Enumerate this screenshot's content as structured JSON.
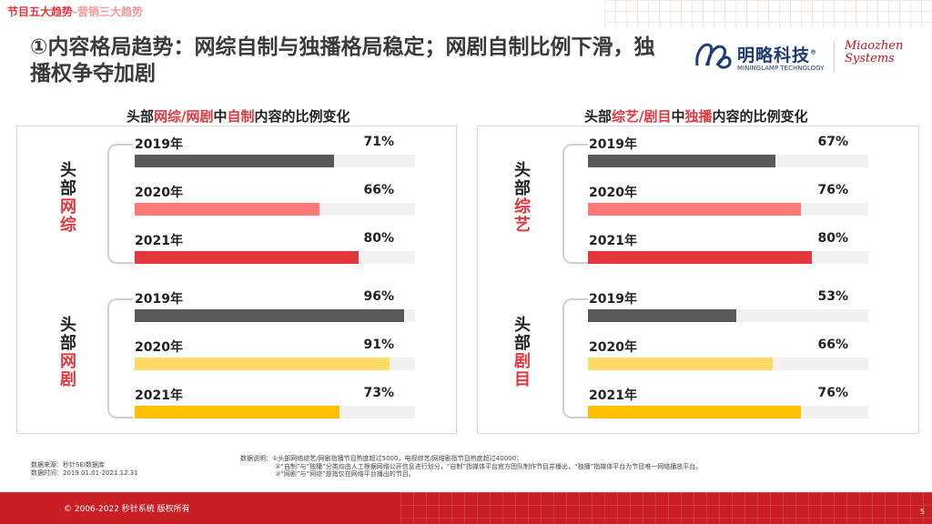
{
  "header": {
    "crumb_main": "节目五大趋势",
    "crumb_sub": "-营销三大趋势",
    "title": "①内容格局趋势：网综自制与独播格局稳定；网剧自制比例下滑，独播权争夺加剧"
  },
  "logos": {
    "mininglamp_name": "明略科技",
    "mininglamp_reg": "®",
    "mininglamp_sub": "MININGLAMP TECHNOLOGY",
    "miaozhen_line1": "Miaozhen",
    "miaozhen_line2": "Systems"
  },
  "colors": {
    "accent": "#e0383e",
    "bar_dark": "#595959",
    "bar_pink": "#ff7a76",
    "bar_red": "#e2383d",
    "bar_lightyellow": "#ffd966",
    "bar_yellow": "#ffc000",
    "track": "#f1f1f1"
  },
  "chart_data": [
    {
      "type": "bar",
      "title": "头部网综/网剧中自制内容的比例变化",
      "title_parts": [
        "头部",
        "网综/网剧",
        "中",
        "自制",
        "内容的比例变化"
      ],
      "groups": [
        {
          "label_black": "头部",
          "label_red": "网综",
          "categories": [
            "2019年",
            "2020年",
            "2021年"
          ],
          "values": [
            71,
            66,
            80
          ],
          "value_labels": [
            "71%",
            "66%",
            "80%"
          ]
        },
        {
          "label_black": "头部",
          "label_red": "网剧",
          "categories": [
            "2019年",
            "2020年",
            "2021年"
          ],
          "values": [
            96,
            91,
            73
          ],
          "value_labels": [
            "96%",
            "91%",
            "73%"
          ]
        }
      ],
      "ylim": [
        0,
        100
      ]
    },
    {
      "type": "bar",
      "title": "头部综艺/剧目中独播内容的比例变化",
      "title_parts": [
        "头部",
        "综艺/剧目",
        "中",
        "独播",
        "内容的比例变化"
      ],
      "groups": [
        {
          "label_black": "头部",
          "label_red": "综艺",
          "categories": [
            "2019年",
            "2020年",
            "2021年"
          ],
          "values": [
            67,
            76,
            80
          ],
          "value_labels": [
            "67%",
            "76%",
            "80%"
          ]
        },
        {
          "label_black": "头部",
          "label_red": "剧目",
          "categories": [
            "2019年",
            "2020年",
            "2021年"
          ],
          "values": [
            53,
            66,
            76
          ],
          "value_labels": [
            "53%",
            "66%",
            "76%"
          ]
        }
      ],
      "ylim": [
        0,
        100
      ]
    }
  ],
  "footer": {
    "source_line1": "数据来源：秒针SEI数据库",
    "source_line2": "数据时间：2019.01.01-2021.12.31",
    "note_line1": "数据说明：①头部网络综艺/网剧指播节目热度超过5000，电视综艺/网络剧指节目热度超过40000；",
    "note_line2": "②“自制”与“独播”分类均由人工根据网络公开信息进行划分，“自制”指媒体平台官方团队制作节目并播出，“独播”指媒体平台为节目唯一网络播放平台。",
    "note_line3": "③“网剧”与“网综”是指仅在网络平台播出的节目。",
    "copyright": "© 2006-2022 秒针系统 版权所有",
    "page": "5"
  }
}
